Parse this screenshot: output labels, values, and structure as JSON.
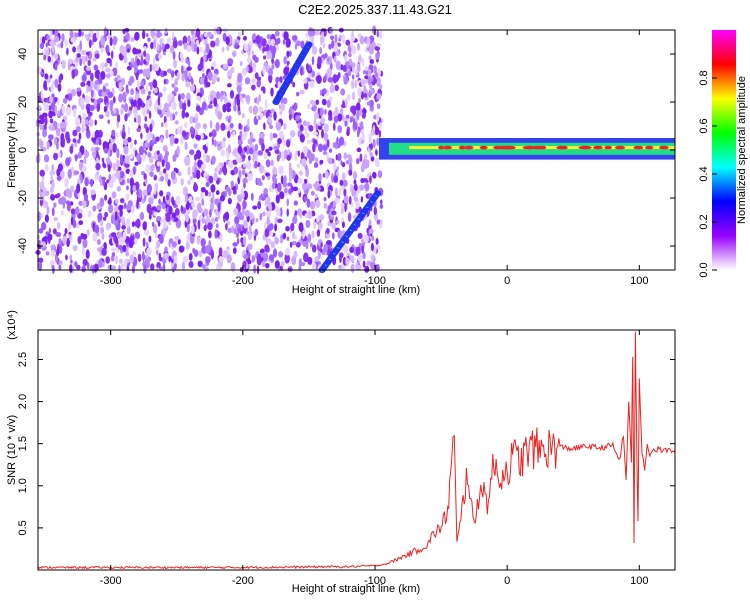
{
  "title": "C2E2.2025.337.11.43.G21",
  "chart_data": [
    {
      "type": "heatmap",
      "title": "C2E2.2025.337.11.43.G21",
      "xlabel": "Height of straight line (km)",
      "ylabel": "Frequency (Hz)",
      "xlim": [
        -355,
        127
      ],
      "ylim": [
        -50,
        50
      ],
      "xticks": [
        -300,
        -200,
        -100,
        0,
        100
      ],
      "xtick_labels": [
        "-300",
        "-200",
        "-100",
        "0",
        "100"
      ],
      "yticks": [
        -40,
        -20,
        0,
        20,
        40
      ],
      "ytick_labels": [
        "-40",
        "-20",
        "0",
        "20",
        "40"
      ],
      "noise_region_x": [
        -355,
        -95
      ],
      "features": [
        {
          "name": "ascending-trace-upper",
          "x": [
            -175,
            -150
          ],
          "y": [
            20,
            44
          ]
        },
        {
          "name": "ascending-trace-lower",
          "x": [
            -140,
            -98
          ],
          "y": [
            -50,
            -18
          ]
        },
        {
          "name": "carrier-band",
          "x": [
            -97,
            127
          ],
          "y": [
            -2,
            3
          ]
        }
      ],
      "colorbar": {
        "label": "Normalized spectral amplitude",
        "range": [
          0,
          1
        ],
        "ticks": [
          0.0,
          0.2,
          0.4,
          0.6,
          0.8
        ],
        "tick_labels": [
          "0.0",
          "0.2",
          "0.4",
          "0.6",
          "0.8"
        ],
        "colormap": [
          "#ffffff",
          "#9900ff",
          "#0000ff",
          "#00ffff",
          "#00ff00",
          "#ffff00",
          "#ff0000",
          "#ff00ff"
        ]
      }
    },
    {
      "type": "line",
      "xlabel": "Height of straight line (km)",
      "ylabel": "SNR (10 * v/v)",
      "yscale_label": "(x10⁴)",
      "xlim": [
        -355,
        127
      ],
      "ylim": [
        0,
        2.85
      ],
      "xticks": [
        -300,
        -200,
        -100,
        0,
        100
      ],
      "xtick_labels": [
        "-300",
        "-200",
        "-100",
        "0",
        "100"
      ],
      "yticks": [
        0.5,
        1.0,
        1.5,
        2.0,
        2.5
      ],
      "ytick_labels": [
        "0.5",
        "1.0",
        "1.5",
        "2.0",
        "2.5"
      ],
      "series": [
        {
          "name": "SNR",
          "color": "#ee2222",
          "x": [
            -355,
            -300,
            -200,
            -120,
            -100,
            -90,
            -80,
            -70,
            -60,
            -55,
            -50,
            -45,
            -42,
            -40,
            -38,
            -35,
            -30,
            -25,
            -20,
            -15,
            -10,
            -5,
            0,
            5,
            10,
            15,
            20,
            25,
            30,
            40,
            50,
            60,
            70,
            80,
            85,
            88,
            90,
            92,
            94,
            95,
            96,
            97,
            98,
            99,
            100,
            102,
            104,
            106,
            108,
            110,
            115,
            120,
            127
          ],
          "y": [
            0.03,
            0.03,
            0.03,
            0.04,
            0.05,
            0.08,
            0.15,
            0.22,
            0.3,
            0.45,
            0.5,
            0.7,
            1.3,
            1.55,
            0.3,
            0.6,
            1.2,
            0.5,
            1.05,
            0.8,
            1.25,
            1.1,
            1.2,
            1.35,
            1.3,
            1.4,
            1.45,
            1.42,
            1.45,
            1.46,
            1.44,
            1.47,
            1.45,
            1.48,
            1.3,
            1.6,
            1.05,
            2.0,
            1.3,
            2.55,
            0.3,
            2.85,
            1.5,
            0.55,
            2.3,
            1.4,
            1.2,
            1.5,
            1.38,
            1.42,
            1.43,
            1.42,
            1.42
          ]
        }
      ]
    }
  ]
}
